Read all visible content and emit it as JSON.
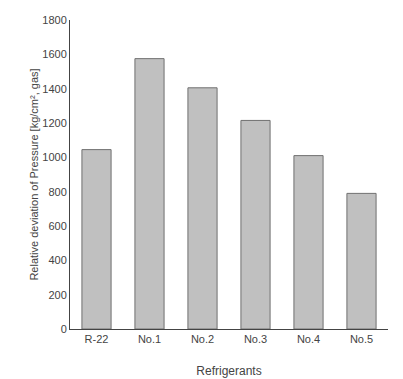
{
  "chart_data": {
    "type": "bar",
    "categories": [
      "R-22",
      "No.1",
      "No.2",
      "No.3",
      "No.4",
      "No.5"
    ],
    "values": [
      1045,
      1575,
      1405,
      1215,
      1010,
      790
    ],
    "color": "#c0c0c0",
    "xlabel": "Refrigerants",
    "ylabel": "Relative deviation of Pressure [kg/cm², gas]",
    "ylim": [
      0,
      1800
    ],
    "yticks": [
      0,
      200,
      400,
      600,
      800,
      1000,
      1200,
      1400,
      1600,
      1800
    ],
    "grid": false
  }
}
